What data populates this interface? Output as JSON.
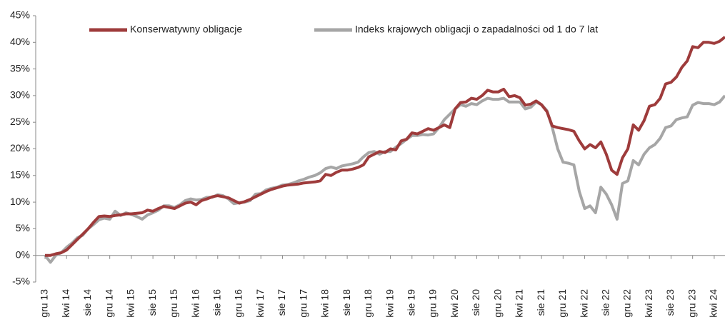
{
  "chart_data": {
    "type": "line",
    "categories": [
      "gru 13",
      null,
      null,
      null,
      "kwi 14",
      null,
      null,
      null,
      "sie 14",
      null,
      null,
      null,
      "gru 14",
      null,
      null,
      null,
      "kwi 15",
      null,
      null,
      null,
      "sie 15",
      null,
      null,
      null,
      "gru 15",
      null,
      null,
      null,
      "kwi 16",
      null,
      null,
      null,
      "sie 16",
      null,
      null,
      null,
      "gru 16",
      null,
      null,
      null,
      "kwi 17",
      null,
      null,
      null,
      "sie 17",
      null,
      null,
      null,
      "gru 17",
      null,
      null,
      null,
      "kwi 18",
      null,
      null,
      null,
      "sie 18",
      null,
      null,
      null,
      "gru 18",
      null,
      null,
      null,
      "kwi 19",
      null,
      null,
      null,
      "sie 19",
      null,
      null,
      null,
      "gru 19",
      null,
      null,
      null,
      "kwi 20",
      null,
      null,
      null,
      "sie 20",
      null,
      null,
      null,
      "gru 20",
      null,
      null,
      null,
      "kwi 21",
      null,
      null,
      null,
      "sie 21",
      null,
      null,
      null,
      "gru 21",
      null,
      null,
      null,
      "kwi 22",
      null,
      null,
      null,
      "sie 22",
      null,
      null,
      null,
      "gru 22",
      null,
      null,
      null,
      "kwi 23",
      null,
      null,
      null,
      "sie 23",
      null,
      null,
      null,
      "gru 23",
      null,
      null,
      null,
      "kwi 24",
      null,
      null
    ],
    "series": [
      {
        "name": "Konserwatywny obligacje",
        "color": "#9e3b3b",
        "values": [
          0,
          0,
          0.3,
          0.5,
          1,
          2,
          3,
          4,
          5,
          6.2,
          7.3,
          7.4,
          7.3,
          7.5,
          7.6,
          7.8,
          7.8,
          7.9,
          8,
          8.5,
          8.3,
          8.8,
          9.2,
          9,
          8.8,
          9.3,
          9.8,
          10,
          9.5,
          10.3,
          10.6,
          11,
          11.2,
          11,
          10.8,
          10.3,
          9.8,
          10.1,
          10.5,
          11,
          11.5,
          12,
          12.4,
          12.7,
          13,
          13.2,
          13.3,
          13.4,
          13.6,
          13.7,
          13.8,
          14,
          15.2,
          15,
          15.6,
          16,
          16,
          16.2,
          16.5,
          17,
          18.5,
          19,
          19.5,
          19.3,
          20,
          19.8,
          21.5,
          21.8,
          23,
          22.8,
          23.3,
          23.8,
          23.5,
          24,
          24.5,
          24,
          27.5,
          28.7,
          28.8,
          29.5,
          29.3,
          30,
          31,
          30.7,
          30.7,
          31.2,
          29.8,
          30,
          29.6,
          28.2,
          28.4,
          29,
          28.3,
          27,
          24.3,
          24,
          23.8,
          23.6,
          23.3,
          21.5,
          20,
          20.8,
          20.2,
          21.3,
          19,
          16,
          15.2,
          18.3,
          20,
          24.5,
          23.5,
          25.3,
          28,
          28.3,
          29.5,
          32.2,
          32.5,
          33.5,
          35.3,
          36.5,
          39.2,
          39,
          40,
          40,
          39.8,
          40.2,
          41
        ]
      },
      {
        "name": "Indeks krajowych obligacji o zapadalności od 1 do 7 lat",
        "color": "#a6a6a6",
        "values": [
          0,
          -1.3,
          0,
          0.5,
          1.5,
          2.3,
          3.3,
          3.8,
          5,
          5.8,
          6.7,
          7,
          6.8,
          8.3,
          7.5,
          8,
          7.7,
          7.3,
          6.8,
          7.6,
          8,
          8.5,
          9.3,
          9.3,
          9,
          9.5,
          10.3,
          10.6,
          10.4,
          10.5,
          10.9,
          10.9,
          11.4,
          11.2,
          10.6,
          9.7,
          9.9,
          10,
          10.3,
          11.5,
          11.6,
          12.3,
          12.6,
          12.8,
          13.2,
          13.3,
          13.6,
          14,
          14.3,
          14.7,
          15,
          15.5,
          16.3,
          16.6,
          16.3,
          16.8,
          17,
          17.2,
          17.5,
          18.5,
          19.3,
          19.5,
          19,
          19.5,
          19.5,
          20.3,
          21,
          21.8,
          22.5,
          22.5,
          22.7,
          22.6,
          22.8,
          24,
          25.5,
          26.5,
          27.5,
          28.3,
          28,
          28.5,
          28.3,
          29,
          29.5,
          29.3,
          29.3,
          29.5,
          28.8,
          28.8,
          28.8,
          27.5,
          27.8,
          28.8,
          28.3,
          27.2,
          24,
          20,
          17.5,
          17.3,
          17,
          12,
          8.8,
          9.3,
          8,
          12.8,
          11.5,
          9.5,
          6.8,
          13.5,
          14,
          17.8,
          17,
          19,
          20.2,
          20.8,
          22,
          24,
          24.3,
          25.5,
          25.8,
          26,
          28.2,
          28.7,
          28.5,
          28.5,
          28.3,
          28.8,
          30
        ]
      }
    ],
    "ylim": [
      -5,
      45
    ],
    "yticks": [
      {
        "value": -5,
        "label": "-5%"
      },
      {
        "value": 0,
        "label": "0%"
      },
      {
        "value": 5,
        "label": "5%"
      },
      {
        "value": 10,
        "label": "10%"
      },
      {
        "value": 15,
        "label": "15%"
      },
      {
        "value": 20,
        "label": "20%"
      },
      {
        "value": 25,
        "label": "25%"
      },
      {
        "value": 30,
        "label": "30%"
      },
      {
        "value": 35,
        "label": "35%"
      },
      {
        "value": 40,
        "label": "40%"
      },
      {
        "value": 45,
        "label": "45%"
      }
    ],
    "legend": "top",
    "grid": false
  }
}
